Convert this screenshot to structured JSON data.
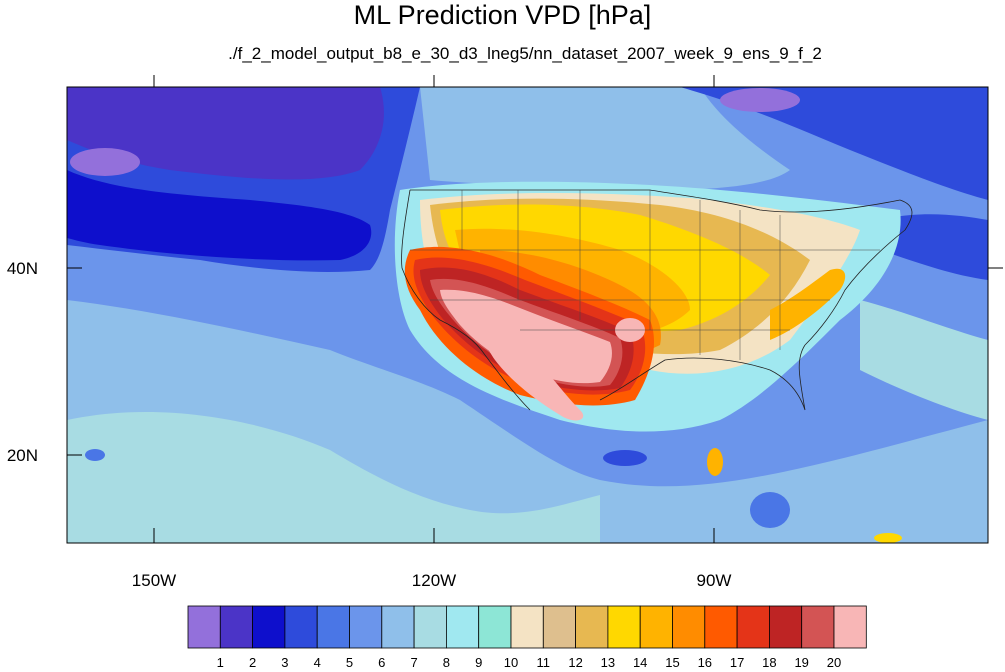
{
  "title": "ML Prediction VPD [hPa]",
  "subtitle": "./f_2_model_output_b8_e_30_d3_lneg5/nn_dataset_2007_week_9_ens_9_f_2",
  "lat_labels": [
    "40N",
    "20N"
  ],
  "lon_labels": [
    "150W",
    "120W",
    "90W"
  ],
  "colorbar": {
    "labels": [
      "1",
      "2",
      "3",
      "4",
      "5",
      "6",
      "7",
      "8",
      "9",
      "10",
      "11",
      "12",
      "13",
      "14",
      "15",
      "16",
      "17",
      "18",
      "19",
      "20"
    ],
    "colors": [
      "#9370DB",
      "#4B34C7",
      "#0E0FCC",
      "#2E4BDB",
      "#4A76E6",
      "#6B95EB",
      "#8FBFEA",
      "#A8DCE3",
      "#A0E8F0",
      "#8DE6D6",
      "#F4E3C4",
      "#DEBF8E",
      "#E7B851",
      "#FFD800",
      "#FFB300",
      "#FF8C00",
      "#FF5A00",
      "#E43418",
      "#BE2424",
      "#D35454",
      "#F8B6B6"
    ]
  },
  "map_colors": {
    "ocean_deep": "#0E0FCC",
    "ocean_mid": "#2E4BDB",
    "ocean_light": "#4A76E6",
    "ocean_pale": "#6B95EB",
    "subtropic": "#8FBFEA",
    "cyan": "#A8DCE3",
    "hot": "#F8B6B6"
  }
}
